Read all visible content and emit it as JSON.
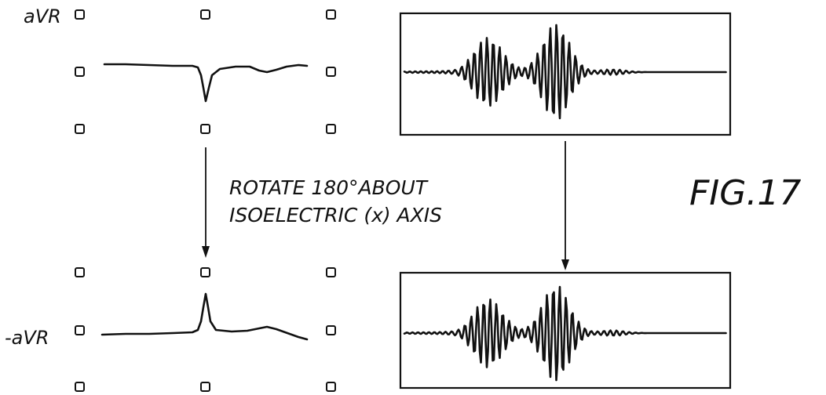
{
  "figure": {
    "label": "FIG.17",
    "lead_top": "aVR",
    "lead_bottom": "-aVR",
    "caption_line1": "ROTATE 180°ABOUT",
    "caption_line2": "ISOELECTRIC (x) AXIS"
  }
}
